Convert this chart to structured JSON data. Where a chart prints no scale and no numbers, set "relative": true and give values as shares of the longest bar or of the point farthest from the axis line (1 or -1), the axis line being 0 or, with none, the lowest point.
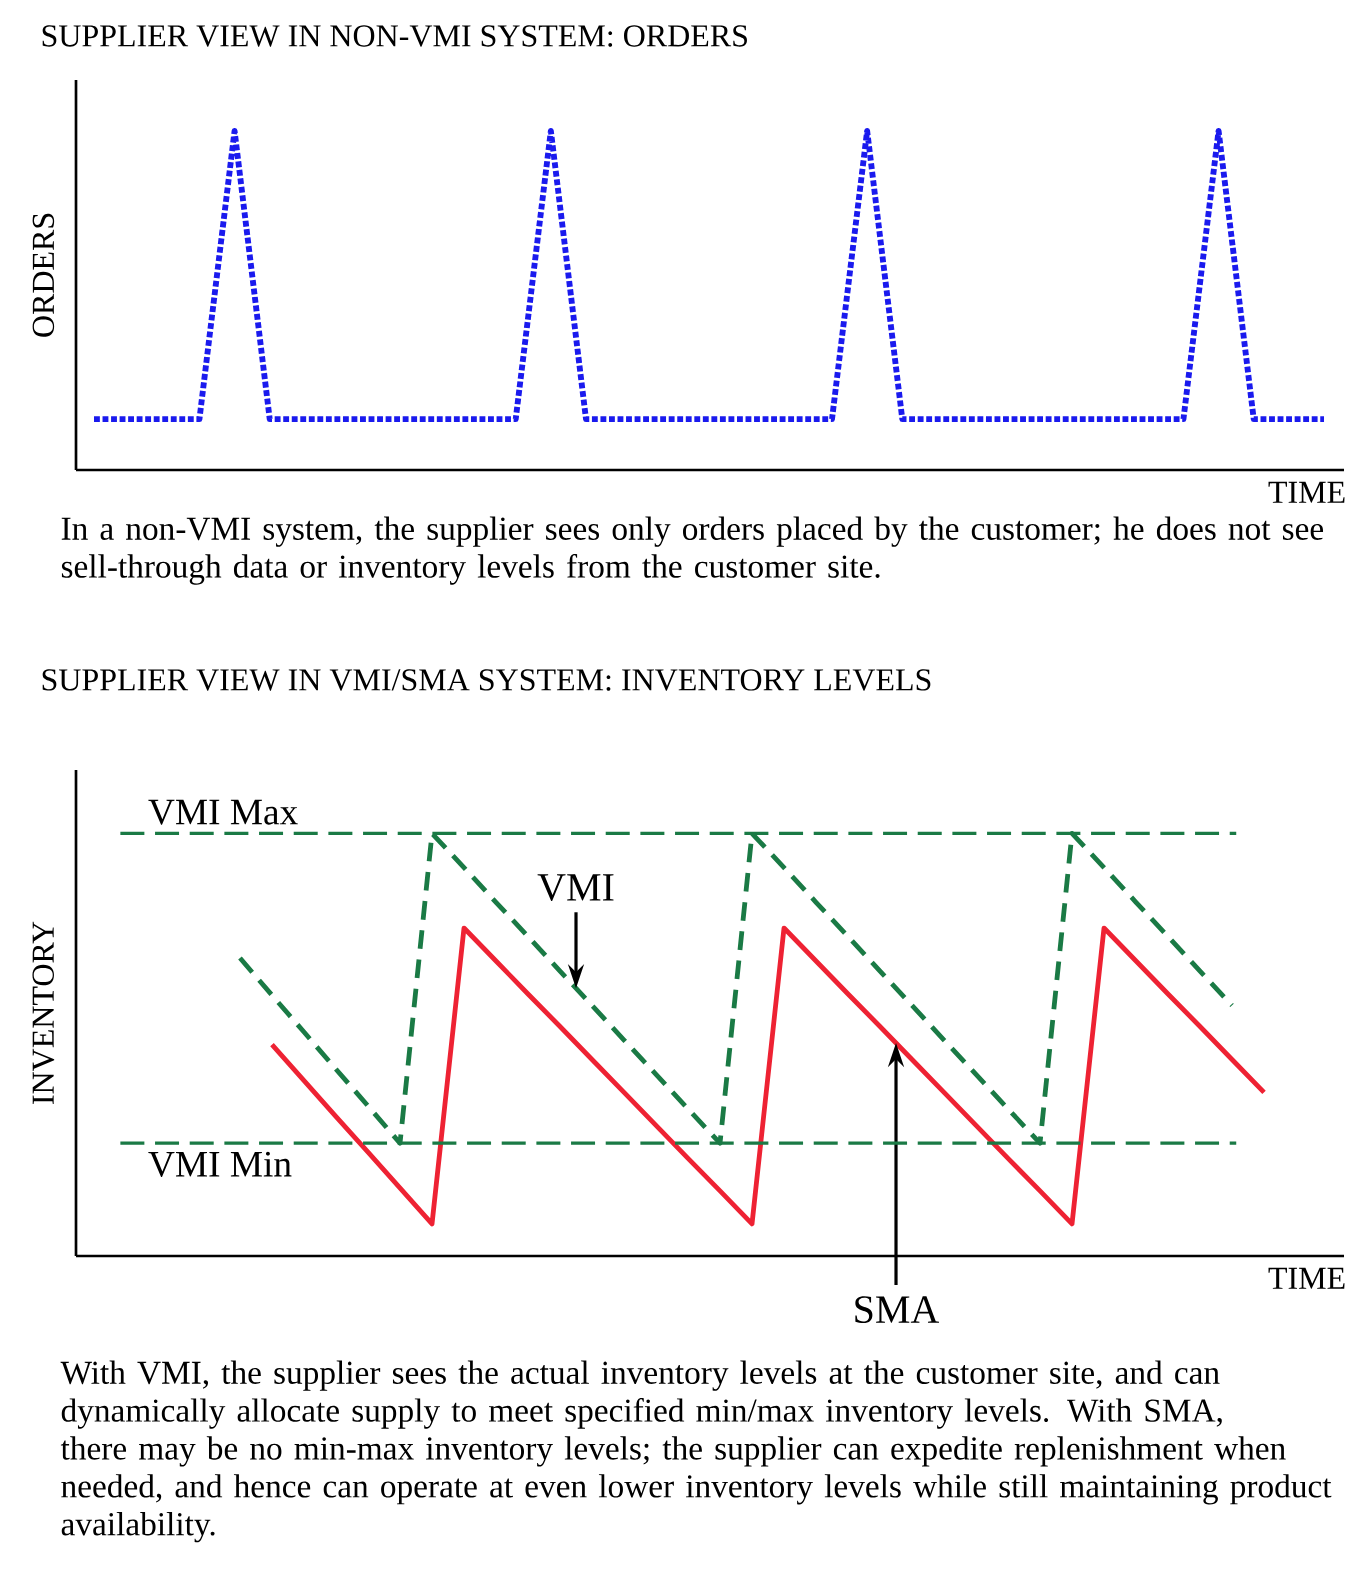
{
  "chart_data": [
    {
      "type": "line",
      "title": "SUPPLIER VIEW IN NON-VMI SYSTEM: ORDERS",
      "xlabel": "TIME",
      "ylabel": "ORDERS",
      "relative": true,
      "categories": [
        null,
        null,
        null,
        null,
        null,
        null,
        null,
        null,
        null,
        null,
        null,
        null,
        null,
        null,
        null,
        null,
        null,
        null,
        null,
        null,
        null,
        null,
        null,
        null,
        null,
        null,
        null,
        null,
        null,
        null,
        null,
        null,
        null,
        null,
        null,
        null
      ],
      "series": [
        {
          "color": "#1a1aee",
          "line_style": "dotted",
          "values": [
            0.15,
            0.15,
            0.15,
            0.15,
            1,
            0.15,
            0.15,
            0.15,
            0.15,
            0.15,
            0.15,
            0.15,
            0.15,
            1,
            0.15,
            0.15,
            0.15,
            0.15,
            0.15,
            0.15,
            0.15,
            0.15,
            1,
            0.15,
            0.15,
            0.15,
            0.15,
            0.15,
            0.15,
            0.15,
            0.15,
            0.15,
            1,
            0.15,
            0.15,
            0.15
          ]
        }
      ],
      "annotations": [
        "In a non-VMI system, the supplier sees only orders placed by the customer; he does not see sell-through data or inventory levels from the customer site."
      ]
    },
    {
      "type": "line",
      "title": "SUPPLIER VIEW IN VMI/SMA SYSTEM: INVENTORY LEVELS",
      "xlabel": "TIME",
      "ylabel": "INVENTORY",
      "relative": true,
      "categories": [
        null,
        null,
        null,
        null,
        null,
        null,
        null,
        null,
        null,
        null,
        null,
        null,
        null,
        null,
        null,
        null,
        null,
        null,
        null,
        null,
        null,
        null,
        null,
        null,
        null,
        null,
        null,
        null,
        null,
        null,
        null,
        null,
        null
      ],
      "series": [
        {
          "name": "VMI",
          "color": "#1a7a45",
          "line_style": "dashed",
          "values": [
            0.705,
            0.617,
            0.53,
            0.442,
            0.355,
            0.267,
            1,
            0.919,
            0.837,
            0.756,
            0.674,
            0.593,
            0.511,
            0.43,
            0.348,
            0.267,
            1,
            0.919,
            0.837,
            0.756,
            0.674,
            0.593,
            0.511,
            0.43,
            0.348,
            0.267,
            1,
            0.919,
            0.837,
            0.756,
            0.674,
            0.593,
            null
          ]
        },
        {
          "name": "SMA",
          "color": "#ee2233",
          "line_style": "solid",
          "values": [
            null,
            0.5,
            0.415,
            0.33,
            0.246,
            0.161,
            0.076,
            0.776,
            0.698,
            0.62,
            0.543,
            0.465,
            0.387,
            0.309,
            0.231,
            0.154,
            0.076,
            0.776,
            0.698,
            0.62,
            0.543,
            0.465,
            0.387,
            0.309,
            0.231,
            0.154,
            0.076,
            0.776,
            0.698,
            0.62,
            0.543,
            0.465,
            0.387
          ]
        }
      ],
      "ref_lines": [
        {
          "axis": "y",
          "value": 1,
          "label": "VMI Max",
          "color": "#1a7a45",
          "line_style": "dashed"
        },
        {
          "axis": "y",
          "value": 0.267,
          "label": "VMI Min",
          "color": "#1a7a45",
          "line_style": "dashed"
        }
      ],
      "annotations": [
        "With VMI, the supplier sees the actual inventory levels at the customer site, and can dynamically allocate supply to meet specified min/max inventory levels. With SMA, there may be no min-max inventory levels; the supplier can expedite replenishment when needed, and hence can operate at even lower inventory levels while still maintaining product availability."
      ]
    }
  ]
}
